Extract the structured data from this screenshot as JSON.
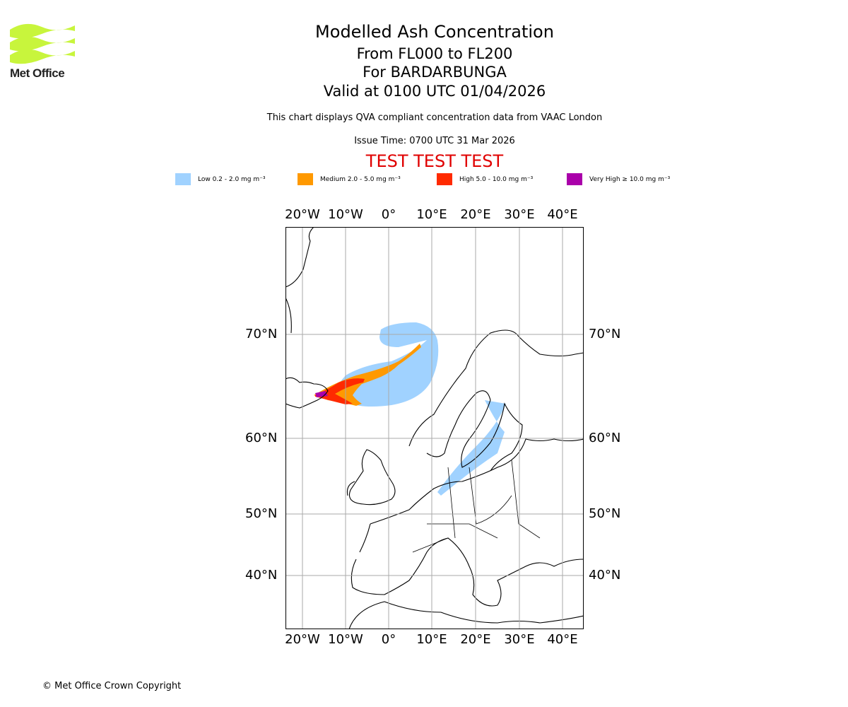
{
  "logo": {
    "text": "Met Office",
    "color": "#c8f53c"
  },
  "title": "Modelled Ash Concentration",
  "subtitle1": "From FL000 to FL200",
  "subtitle2": "For BARDARBUNGA",
  "subtitle3": "Valid at 0100 UTC 01/04/2026",
  "description": "This chart displays QVA compliant concentration data from VAAC London",
  "issue_time": "Issue Time: 0700 UTC 31 Mar 2026",
  "test_banner": "TEST TEST TEST",
  "legend": [
    {
      "label": "Low 0.2 - 2.0 mg m⁻³",
      "color": "#a0d2ff"
    },
    {
      "label": "Medium 2.0 - 5.0 mg m⁻³",
      "color": "#ff9900"
    },
    {
      "label": "High 5.0 - 10.0 mg m⁻³",
      "color": "#ff2a00"
    },
    {
      "label": "Very High ≥ 10.0 mg m⁻³",
      "color": "#aa00aa"
    }
  ],
  "lon_labels": [
    "20°W",
    "10°W",
    "0°",
    "10°E",
    "20°E",
    "30°E",
    "40°E"
  ],
  "lat_labels": [
    "70°N",
    "60°N",
    "50°N",
    "40°N"
  ],
  "copyright": "© Met Office Crown Copyright"
}
